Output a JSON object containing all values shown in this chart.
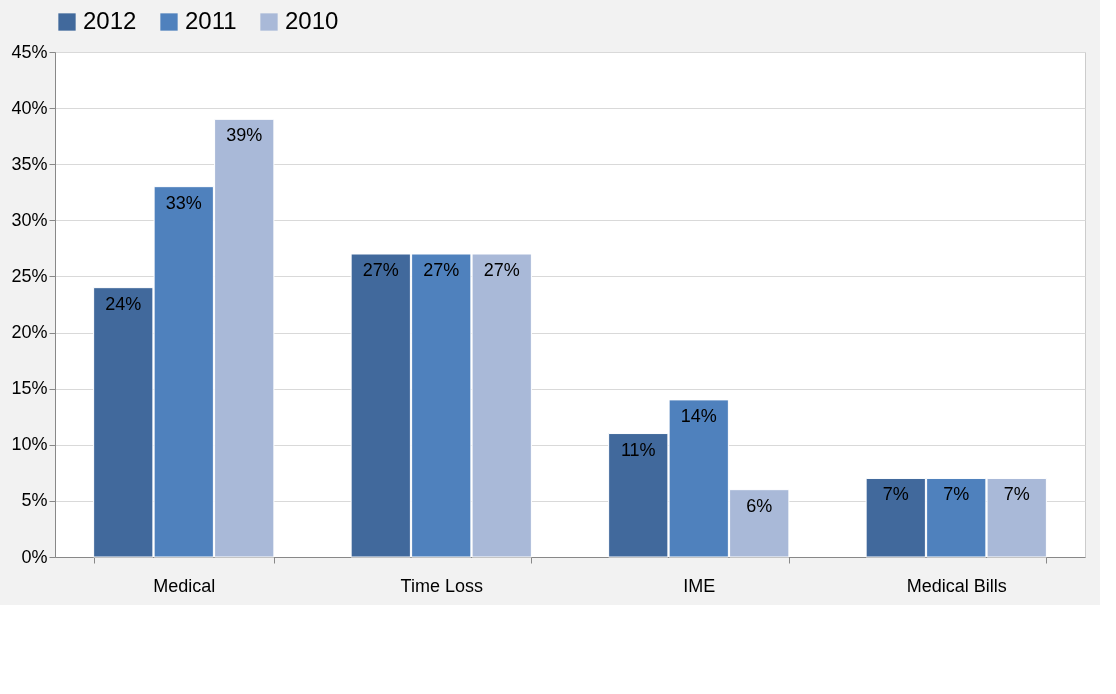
{
  "chart_data": {
    "type": "bar",
    "categories": [
      "Medical",
      "Time Loss",
      "IME",
      "Medical Bills"
    ],
    "series": [
      {
        "name": "2012",
        "color": "#41699c",
        "values": [
          24,
          27,
          11,
          7
        ],
        "value_labels": [
          "24%",
          "27%",
          "11%",
          "7%"
        ]
      },
      {
        "name": "2011",
        "color": "#4f81bd",
        "values": [
          33,
          27,
          14,
          7
        ],
        "value_labels": [
          "33%",
          "27%",
          "14%",
          "7%"
        ]
      },
      {
        "name": "2010",
        "color": "#a9b9d8",
        "values": [
          39,
          27,
          6,
          7
        ],
        "value_labels": [
          "39%",
          "27%",
          "6%",
          "7%"
        ]
      }
    ],
    "ylim": [
      0,
      45
    ],
    "yticks": [
      {
        "value": 0,
        "label": "0%"
      },
      {
        "value": 5,
        "label": "5%"
      },
      {
        "value": 10,
        "label": "10%"
      },
      {
        "value": 15,
        "label": "15%"
      },
      {
        "value": 20,
        "label": "20%"
      },
      {
        "value": 25,
        "label": "25%"
      },
      {
        "value": 30,
        "label": "30%"
      },
      {
        "value": 35,
        "label": "35%"
      },
      {
        "value": 40,
        "label": "40%"
      },
      {
        "value": 45,
        "label": "45%"
      }
    ],
    "grid": "y",
    "legend": "top"
  }
}
